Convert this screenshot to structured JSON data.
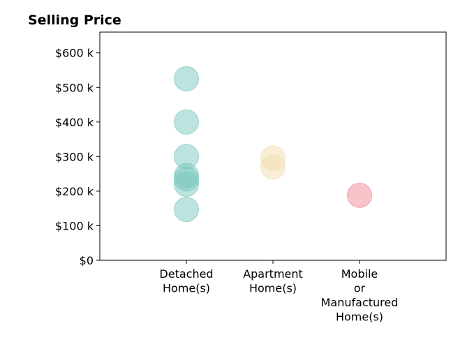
{
  "chart_data": {
    "type": "scatter",
    "title": "Selling Price",
    "xlabel": "",
    "ylabel": "",
    "categories": [
      "Detached Home(s)",
      "Apartment Home(s)",
      "Mobile or Manufactured Home(s)"
    ],
    "category_tick_lines": [
      [
        "Detached",
        "Home(s)"
      ],
      [
        "Apartment",
        "Home(s)"
      ],
      [
        "Mobile",
        "or",
        "Manufactured",
        "Home(s)"
      ]
    ],
    "ylim": [
      0,
      660000
    ],
    "xlim": [
      -1,
      3
    ],
    "y_ticks": [
      {
        "value": 0,
        "label": "$0"
      },
      {
        "value": 100000,
        "label": "$100 k"
      },
      {
        "value": 200000,
        "label": "$200 k"
      },
      {
        "value": 300000,
        "label": "$300 k"
      },
      {
        "value": 400000,
        "label": "$400 k"
      },
      {
        "value": 500000,
        "label": "$500 k"
      },
      {
        "value": 600000,
        "label": "$600 k"
      }
    ],
    "grid": false,
    "legend": "none",
    "series": [
      {
        "category": "Detached Home(s)",
        "color": "#7cc8bf",
        "values": [
          525000,
          400000,
          300000,
          245000,
          235000,
          220000,
          147000
        ]
      },
      {
        "category": "Apartment Home(s)",
        "color": "#f1deb0",
        "values": [
          296000,
          270000
        ]
      },
      {
        "category": "Mobile or Manufactured Home(s)",
        "color": "#f08a96",
        "values": [
          188000
        ]
      }
    ]
  }
}
